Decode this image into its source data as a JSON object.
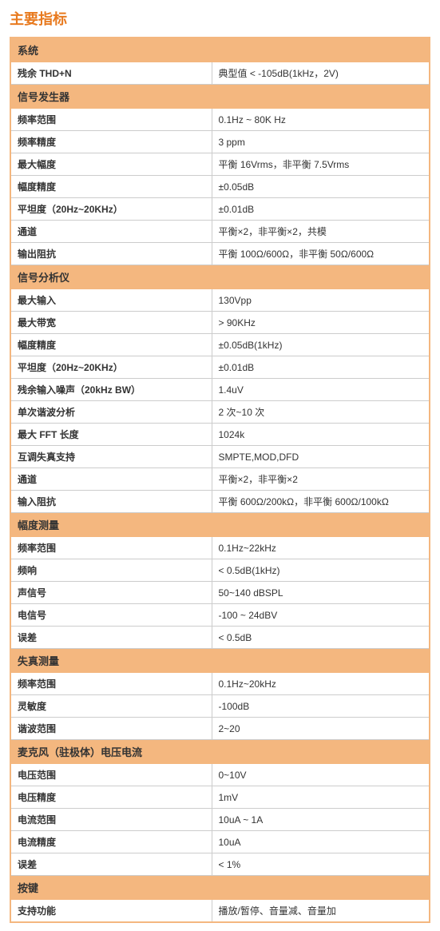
{
  "title": "主要指标",
  "colors": {
    "accent": "#e87a1f",
    "header_bg": "#f4b77f",
    "border": "#cccccc",
    "text": "#333333"
  },
  "sections": [
    {
      "name": "系统",
      "rows": [
        {
          "label": "残余 THD+N",
          "value": "典型值 < -105dB(1kHz，2V)"
        }
      ]
    },
    {
      "name": "信号发生器",
      "rows": [
        {
          "label": "频率范围",
          "value": "0.1Hz ~ 80K Hz"
        },
        {
          "label": "频率精度",
          "value": "3 ppm"
        },
        {
          "label": "最大幅度",
          "value": "平衡 16Vrms，非平衡 7.5Vrms"
        },
        {
          "label": "幅度精度",
          "value": "±0.05dB"
        },
        {
          "label": "平坦度（20Hz~20KHz）",
          "value": "±0.01dB"
        },
        {
          "label": "通道",
          "value": "平衡×2，非平衡×2，共模"
        },
        {
          "label": "输出阻抗",
          "value": "平衡 100Ω/600Ω，非平衡 50Ω/600Ω"
        }
      ]
    },
    {
      "name": "信号分析仪",
      "rows": [
        {
          "label": "最大输入",
          "value": "130Vpp"
        },
        {
          "label": "最大带宽",
          "value": "> 90KHz"
        },
        {
          "label": "幅度精度",
          "value": "±0.05dB(1kHz)"
        },
        {
          "label": "平坦度（20Hz~20KHz）",
          "value": "±0.01dB"
        },
        {
          "label": "残余输入噪声（20kHz BW）",
          "value": "1.4uV"
        },
        {
          "label": "单次谐波分析",
          "value": "2 次~10 次"
        },
        {
          "label": "最大 FFT 长度",
          "value": "1024k"
        },
        {
          "label": "互调失真支持",
          "value": "SMPTE,MOD,DFD"
        },
        {
          "label": "通道",
          "value": "平衡×2，非平衡×2"
        },
        {
          "label": "输入阻抗",
          "value": "平衡 600Ω/200kΩ，非平衡 600Ω/100kΩ"
        }
      ]
    },
    {
      "name": "幅度测量",
      "rows": [
        {
          "label": "频率范围",
          "value": "0.1Hz~22kHz"
        },
        {
          "label": "频响",
          "value": "< 0.5dB(1kHz)"
        },
        {
          "label": "声信号",
          "value": "50~140 dBSPL"
        },
        {
          "label": "电信号",
          "value": "-100 ~ 24dBV"
        },
        {
          "label": "误差",
          "value": "< 0.5dB"
        }
      ]
    },
    {
      "name": "失真测量",
      "rows": [
        {
          "label": "频率范围",
          "value": "0.1Hz~20kHz"
        },
        {
          "label": "灵敏度",
          "value": "-100dB"
        },
        {
          "label": "谐波范围",
          "value": "2~20"
        }
      ]
    },
    {
      "name": "麦克风（驻极体）电压电流",
      "rows": [
        {
          "label": "电压范围",
          "value": "0~10V"
        },
        {
          "label": "电压精度",
          "value": "1mV"
        },
        {
          "label": "电流范围",
          "value": "10uA ~ 1A"
        },
        {
          "label": "电流精度",
          "value": "10uA"
        },
        {
          "label": "误差",
          "value": "< 1%"
        }
      ]
    },
    {
      "name": "按键",
      "rows": [
        {
          "label": "支持功能",
          "value": "播放/暂停、音量减、音量加"
        }
      ]
    }
  ]
}
